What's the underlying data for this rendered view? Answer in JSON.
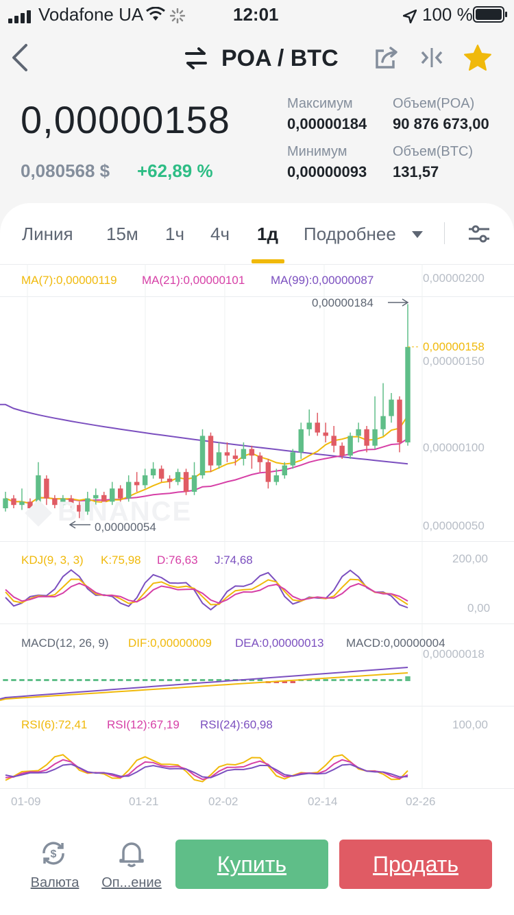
{
  "status_bar": {
    "carrier": "Vodafone UA",
    "time": "12:01",
    "battery": "100 %"
  },
  "header": {
    "pair": "POA / BTC",
    "icons": [
      "back-arrow-icon",
      "swap-icon",
      "share-icon",
      "compare-icon",
      "star-icon"
    ]
  },
  "ticker": {
    "last_price": "0,00000158",
    "usd_price": "0,080568 $",
    "change": "+62,89 %",
    "max_label": "Максимум",
    "max_value": "0,00000184",
    "min_label": "Минимум",
    "min_value": "0,00000093",
    "vol_poa_label": "Объем(POA)",
    "vol_poa_value": "90 876 673,00",
    "vol_btc_label": "Объем(BTC)",
    "vol_btc_value": "131,57"
  },
  "tabs": {
    "line": "Линия",
    "m15": "15м",
    "h1": "1ч",
    "h4": "4ч",
    "d1": "1д",
    "more": "Подробнее"
  },
  "main_chart": {
    "ma7": "MA(7):0,00000119",
    "ma21": "MA(21):0,00000101",
    "ma99": "MA(99):0,00000087",
    "y_labels": [
      "0,00000200",
      "0,00000150",
      "0,00000100",
      "0,00000050"
    ],
    "current_price_tag": "0,00000158",
    "high_marker": "0,00000184",
    "low_marker": "0,00000054",
    "watermark": "BINANCE"
  },
  "kdj": {
    "title": "KDJ(9, 3, 3)",
    "k": "K:75,98",
    "d": "D:76,63",
    "j": "J:74,68",
    "y_top": "200,00",
    "y_bottom": "0,00"
  },
  "macd": {
    "title": "MACD(12, 26, 9)",
    "dif": "DIF:0,00000009",
    "dea": "DEA:0,00000013",
    "macd": "MACD:0,00000004",
    "y_top": "0,00000018"
  },
  "rsi": {
    "rsi6": "RSI(6):72,41",
    "rsi12": "RSI(12):67,19",
    "rsi24": "RSI(24):60,98",
    "y_top": "100,00"
  },
  "x_axis": [
    "01-09",
    "01-21",
    "02-02",
    "02-14",
    "02-26"
  ],
  "bottom_bar": {
    "currency": "Валюта",
    "alert": "Оп...ение",
    "buy": "Купить",
    "sell": "Продать"
  },
  "colors": {
    "up": "#5fbe88",
    "down": "#e05b64",
    "ma7": "#f0b90b",
    "ma21": "#d63fa6",
    "ma99": "#7b4fbf",
    "accent": "#f0b90b"
  },
  "chart_data": {
    "type": "candlestick",
    "title": "POA / BTC",
    "ylim": [
      4e-07,
      2.05e-06
    ],
    "x_ticks": [
      "01-09",
      "01-21",
      "02-02",
      "02-14",
      "02-26"
    ],
    "candles": [
      {
        "o": 6e-07,
        "c": 6.6e-07,
        "h": 7e-07,
        "l": 5.8e-07
      },
      {
        "o": 6.6e-07,
        "c": 6.2e-07,
        "h": 6.8e-07,
        "l": 6e-07
      },
      {
        "o": 6.2e-07,
        "c": 6.4e-07,
        "h": 7.2e-07,
        "l": 5.9e-07
      },
      {
        "o": 6.4e-07,
        "c": 6e-07,
        "h": 6.6e-07,
        "l": 5.7e-07
      },
      {
        "o": 6e-07,
        "c": 8e-07,
        "h": 8.8e-07,
        "l": 5.8e-07
      },
      {
        "o": 7.8e-07,
        "c": 6.6e-07,
        "h": 8e-07,
        "l": 6.2e-07
      },
      {
        "o": 6.6e-07,
        "c": 6.2e-07,
        "h": 6.8e-07,
        "l": 6e-07
      },
      {
        "o": 6.2e-07,
        "c": 6.6e-07,
        "h": 6.8e-07,
        "l": 6e-07
      },
      {
        "o": 6.6e-07,
        "c": 6.2e-07,
        "h": 6.8e-07,
        "l": 5.8e-07
      },
      {
        "o": 6.2e-07,
        "c": 5.8e-07,
        "h": 6.4e-07,
        "l": 5.4e-07
      },
      {
        "o": 5.8e-07,
        "c": 6.6e-07,
        "h": 7e-07,
        "l": 5.6e-07
      },
      {
        "o": 6.6e-07,
        "c": 6.8e-07,
        "h": 7.2e-07,
        "l": 6.2e-07
      },
      {
        "o": 6.8e-07,
        "c": 6.4e-07,
        "h": 7e-07,
        "l": 6.2e-07
      },
      {
        "o": 6.4e-07,
        "c": 7.2e-07,
        "h": 7.6e-07,
        "l": 6.2e-07
      },
      {
        "o": 7.2e-07,
        "c": 6.6e-07,
        "h": 7.4e-07,
        "l": 6.4e-07
      },
      {
        "o": 6.6e-07,
        "c": 7.6e-07,
        "h": 8e-07,
        "l": 6.4e-07
      },
      {
        "o": 7.6e-07,
        "c": 7.4e-07,
        "h": 8.2e-07,
        "l": 7e-07
      },
      {
        "o": 7.4e-07,
        "c": 8e-07,
        "h": 8.4e-07,
        "l": 7.2e-07
      },
      {
        "o": 8e-07,
        "c": 8.4e-07,
        "h": 8.8e-07,
        "l": 7.8e-07
      },
      {
        "o": 8.4e-07,
        "c": 7.8e-07,
        "h": 8.6e-07,
        "l": 7.6e-07
      },
      {
        "o": 7.8e-07,
        "c": 7.6e-07,
        "h": 8e-07,
        "l": 7.2e-07
      },
      {
        "o": 7.6e-07,
        "c": 8.2e-07,
        "h": 8.4e-07,
        "l": 7.4e-07
      },
      {
        "o": 8.2e-07,
        "c": 7e-07,
        "h": 8.4e-07,
        "l": 6.8e-07
      },
      {
        "o": 7e-07,
        "c": 8e-07,
        "h": 8.8e-07,
        "l": 6.8e-07
      },
      {
        "o": 8e-07,
        "c": 1.04e-06,
        "h": 1.08e-06,
        "l": 7.8e-07
      },
      {
        "o": 1.04e-06,
        "c": 8.6e-07,
        "h": 1.06e-06,
        "l": 8.2e-07
      },
      {
        "o": 8.6e-07,
        "c": 9.4e-07,
        "h": 1e-06,
        "l": 8.4e-07
      },
      {
        "o": 9.4e-07,
        "c": 9.2e-07,
        "h": 1e-06,
        "l": 8.8e-07
      },
      {
        "o": 9.2e-07,
        "c": 9e-07,
        "h": 9.6e-07,
        "l": 8.6e-07
      },
      {
        "o": 9e-07,
        "c": 9.6e-07,
        "h": 1e-06,
        "l": 8.6e-07
      },
      {
        "o": 9.6e-07,
        "c": 9.2e-07,
        "h": 9.8e-07,
        "l": 8.4e-07
      },
      {
        "o": 9.2e-07,
        "c": 8.8e-07,
        "h": 9.4e-07,
        "l": 8.2e-07
      },
      {
        "o": 8.8e-07,
        "c": 7.6e-07,
        "h": 9e-07,
        "l": 7.2e-07
      },
      {
        "o": 7.6e-07,
        "c": 8e-07,
        "h": 8.4e-07,
        "l": 7.4e-07
      },
      {
        "o": 8e-07,
        "c": 8.6e-07,
        "h": 8.8e-07,
        "l": 7.8e-07
      },
      {
        "o": 8.6e-07,
        "c": 9.4e-07,
        "h": 9.6e-07,
        "l": 8.4e-07
      },
      {
        "o": 9.4e-07,
        "c": 1.08e-06,
        "h": 1.12e-06,
        "l": 9e-07
      },
      {
        "o": 1.08e-06,
        "c": 1.12e-06,
        "h": 1.2e-06,
        "l": 1.04e-06
      },
      {
        "o": 1.12e-06,
        "c": 1.06e-06,
        "h": 1.18e-06,
        "l": 1.04e-06
      },
      {
        "o": 1.06e-06,
        "c": 1.04e-06,
        "h": 1.12e-06,
        "l": 1e-06
      },
      {
        "o": 1.04e-06,
        "c": 9.8e-07,
        "h": 1.1e-06,
        "l": 9.4e-07
      },
      {
        "o": 9.8e-07,
        "c": 9.2e-07,
        "h": 1e-06,
        "l": 9e-07
      },
      {
        "o": 9.2e-07,
        "c": 1.04e-06,
        "h": 1.06e-06,
        "l": 9e-07
      },
      {
        "o": 1.04e-06,
        "c": 1.08e-06,
        "h": 1.12e-06,
        "l": 1e-06
      },
      {
        "o": 1.08e-06,
        "c": 9.8e-07,
        "h": 1.1e-06,
        "l": 9.4e-07
      },
      {
        "o": 9.8e-07,
        "c": 1.08e-06,
        "h": 1.28e-06,
        "l": 9.6e-07
      },
      {
        "o": 1.08e-06,
        "c": 1.16e-06,
        "h": 1.36e-06,
        "l": 1.04e-06
      },
      {
        "o": 1.16e-06,
        "c": 1.26e-06,
        "h": 1.3e-06,
        "l": 1.12e-06
      },
      {
        "o": 1.26e-06,
        "c": 1e-06,
        "h": 1.28e-06,
        "l": 9.4e-07
      },
      {
        "o": 1e-06,
        "c": 1.58e-06,
        "h": 1.84e-06,
        "l": 9.8e-07
      }
    ],
    "ma99_start": 1.23e-06,
    "ma99_end": 8.7e-07
  }
}
